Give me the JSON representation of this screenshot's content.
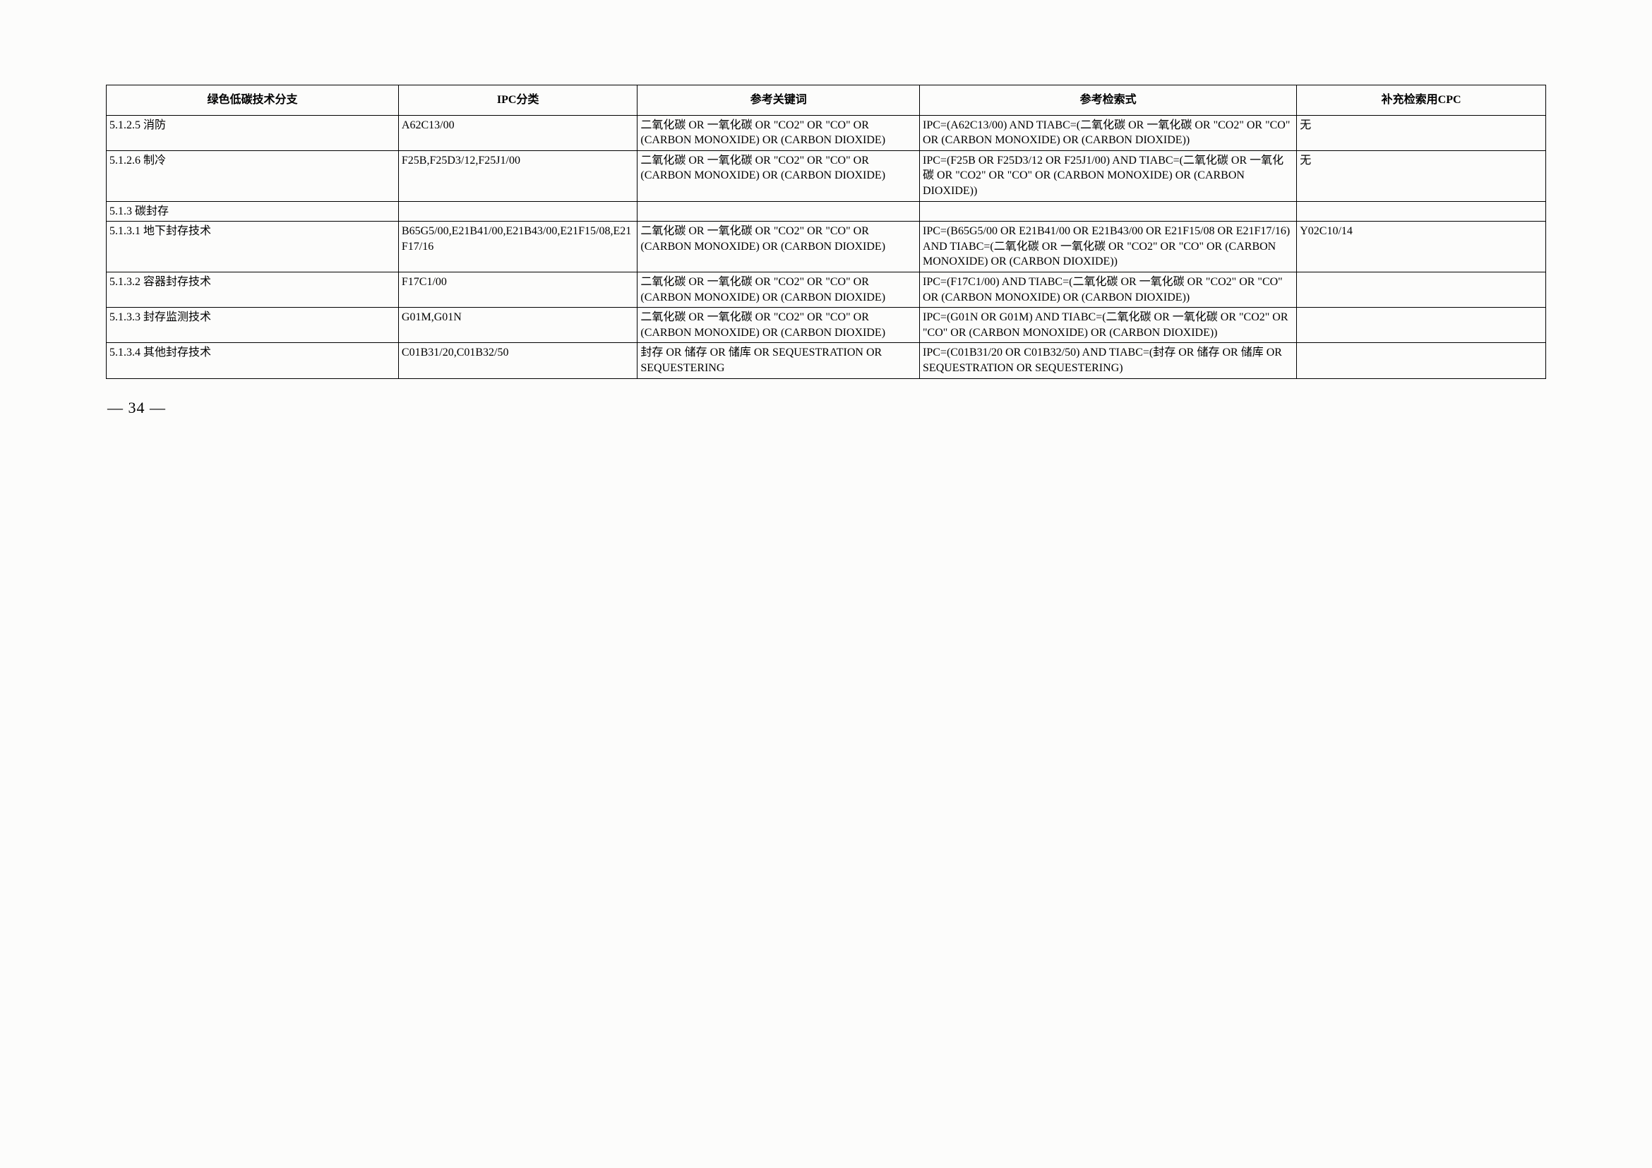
{
  "table": {
    "headers": [
      "绿色低碳技术分支",
      "IPC分类",
      "参考关键词",
      "参考检索式",
      "补充检索用CPC"
    ],
    "col_widths_pct": [
      20.3,
      16.6,
      19.6,
      26.2,
      17.3
    ],
    "border_color": "#000000",
    "background_color": "#fcfcfb",
    "header_fontsize": 16,
    "cell_fontsize": 16,
    "font_family": "SimSun, 宋体, Times New Roman, serif",
    "rows": [
      {
        "c1": "5.1.2.5  消防",
        "c2": "A62C13/00",
        "c3": "二氧化碳 OR 一氧化碳 OR \"CO2\" OR \"CO\" OR (CARBON MONOXIDE) OR (CARBON DIOXIDE)",
        "c4": "IPC=(A62C13/00) AND TIABC=(二氧化碳 OR 一氧化碳 OR \"CO2\" OR \"CO\" OR (CARBON MONOXIDE) OR (CARBON DIOXIDE))",
        "c5": "无"
      },
      {
        "c1": "5.1.2.6  制冷",
        "c2": "F25B,F25D3/12,F25J1/00",
        "c3": "二氧化碳 OR 一氧化碳 OR \"CO2\" OR \"CO\" OR (CARBON MONOXIDE) OR (CARBON DIOXIDE)",
        "c4": "IPC=(F25B OR F25D3/12 OR F25J1/00) AND TIABC=(二氧化碳 OR 一氧化碳 OR \"CO2\" OR \"CO\" OR (CARBON MONOXIDE) OR (CARBON DIOXIDE))",
        "c5": "无"
      },
      {
        "c1": "5.1.3  碳封存",
        "c2": "",
        "c3": "",
        "c4": "",
        "c5": ""
      },
      {
        "c1": "5.1.3.1  地下封存技术",
        "c2": "B65G5/00,E21B41/00,E21B43/00,E21F15/08,E21F17/16",
        "c3": "二氧化碳 OR 一氧化碳 OR \"CO2\" OR \"CO\" OR (CARBON MONOXIDE) OR (CARBON DIOXIDE)",
        "c4": "IPC=(B65G5/00 OR E21B41/00 OR E21B43/00 OR E21F15/08 OR E21F17/16) AND TIABC=(二氧化碳 OR 一氧化碳 OR \"CO2\" OR \"CO\" OR (CARBON MONOXIDE) OR (CARBON DIOXIDE))",
        "c5": "Y02C10/14"
      },
      {
        "c1": "5.1.3.2  容器封存技术",
        "c2": "F17C1/00",
        "c3": "二氧化碳 OR 一氧化碳 OR \"CO2\" OR \"CO\" OR (CARBON MONOXIDE) OR (CARBON DIOXIDE)",
        "c4": "IPC=(F17C1/00) AND TIABC=(二氧化碳 OR 一氧化碳 OR \"CO2\" OR \"CO\" OR (CARBON MONOXIDE) OR (CARBON DIOXIDE))",
        "c5": ""
      },
      {
        "c1": "5.1.3.3  封存监测技术",
        "c2": "G01M,G01N",
        "c3": "二氧化碳 OR 一氧化碳 OR \"CO2\" OR \"CO\" OR (CARBON MONOXIDE) OR (CARBON DIOXIDE)",
        "c4": "IPC=(G01N OR G01M) AND TIABC=(二氧化碳 OR 一氧化碳 OR \"CO2\" OR \"CO\" OR (CARBON MONOXIDE) OR (CARBON DIOXIDE))",
        "c5": ""
      },
      {
        "c1": "5.1.3.4  其他封存技术",
        "c2": "C01B31/20,C01B32/50",
        "c3": "封存 OR 储存 OR 储库 OR SEQUESTRATION OR SEQUESTERING",
        "c4": "IPC=(C01B31/20 OR C01B32/50) AND TIABC=(封存 OR 储存 OR 储库 OR SEQUESTRATION OR SEQUESTERING)",
        "c5": ""
      }
    ]
  },
  "page_number": "— 34 —"
}
